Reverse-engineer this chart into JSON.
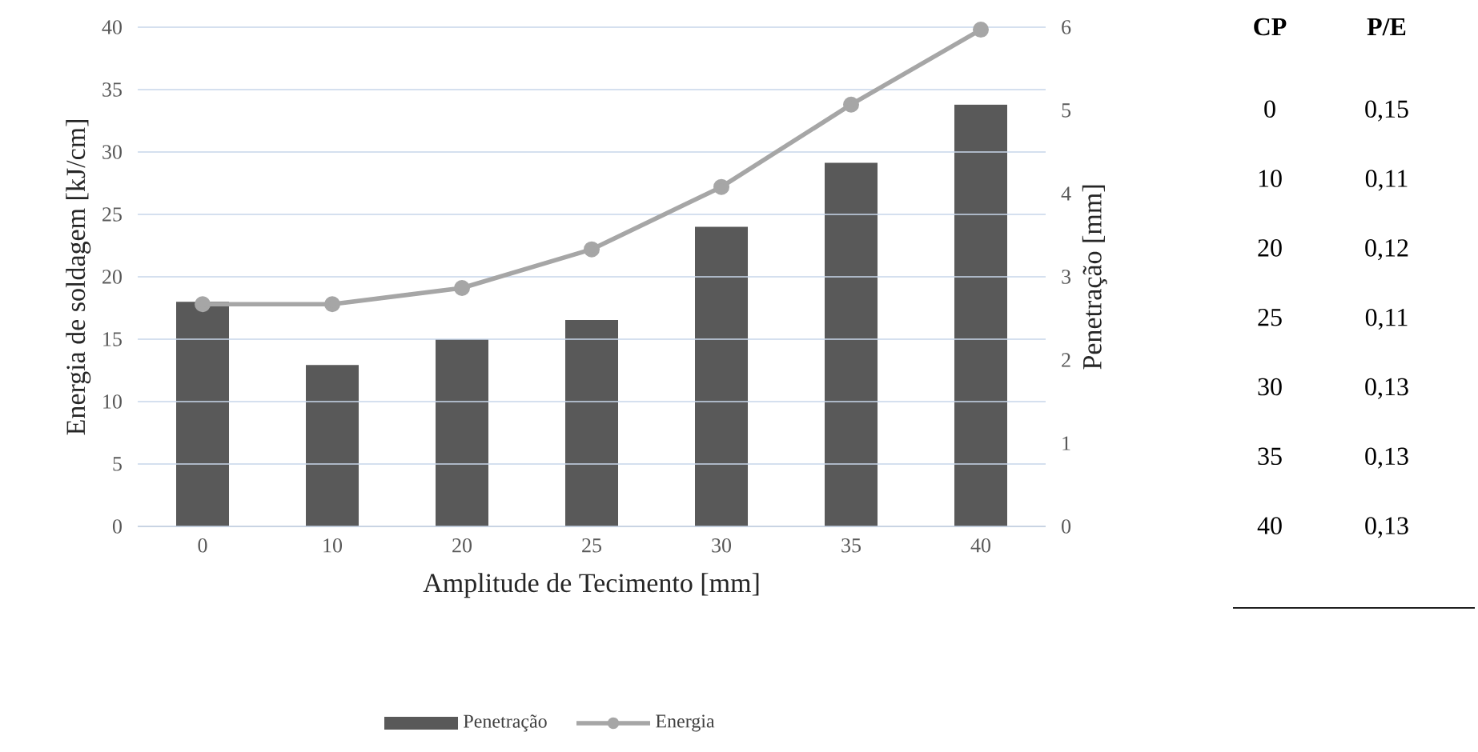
{
  "chart_data": {
    "type": "bar",
    "xlabel": "Amplitude de Tecimento [mm]",
    "ylabel": "Energia de soldagem [kJ/cm]",
    "y2label": "Penetração [mm]",
    "categories": [
      "0",
      "10",
      "20",
      "25",
      "30",
      "35",
      "40"
    ],
    "series": [
      {
        "name": "Penetração",
        "axis": "y2",
        "color": "#595959",
        "values": [
          2.7,
          1.94,
          2.25,
          2.48,
          3.6,
          4.37,
          5.07
        ]
      },
      {
        "name": "Energia",
        "type": "line",
        "color": "#a6a6a6",
        "values": [
          17.8,
          17.8,
          19.1,
          22.2,
          27.2,
          33.8,
          39.8
        ]
      }
    ],
    "ylim": [
      0,
      40
    ],
    "yticks": [
      0,
      5,
      10,
      15,
      20,
      25,
      30,
      35,
      40
    ],
    "y2lim": [
      0,
      6
    ],
    "y2ticks": [
      0,
      1,
      2,
      3,
      4,
      5,
      6
    ],
    "grid": "y",
    "legend": "bottom",
    "marker": "circle",
    "annotations": [
      "CP",
      "P/E",
      "0",
      "0,15",
      "10",
      "0,11",
      "20",
      "0,12",
      "25",
      "0,11",
      "30",
      "0,13",
      "35",
      "0,13",
      "40",
      "0,13"
    ]
  }
}
